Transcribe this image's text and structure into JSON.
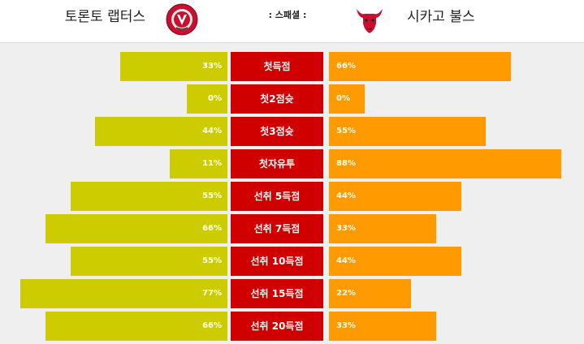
{
  "header": {
    "home_team": "토론토 랩터스",
    "away_team": "시카고 불스",
    "title": ": 스패셜 :",
    "home_logo_icon": "raptors-logo-icon",
    "away_logo_icon": "bulls-logo-icon"
  },
  "colors": {
    "home_bar": "#cccc00",
    "away_bar": "#ff9a00",
    "label_bg": "#d10000"
  },
  "stats": [
    {
      "label": "첫득점",
      "home_pct": "33%",
      "away_pct": "66%",
      "home_value": 33,
      "away_value": 66
    },
    {
      "label": "첫2점슛",
      "home_pct": "0%",
      "away_pct": "0%",
      "home_value": 0,
      "away_value": 0
    },
    {
      "label": "첫3점슛",
      "home_pct": "44%",
      "away_pct": "55%",
      "home_value": 44,
      "away_value": 55
    },
    {
      "label": "첫자유투",
      "home_pct": "11%",
      "away_pct": "88%",
      "home_value": 11,
      "away_value": 88
    },
    {
      "label": "선취 5득점",
      "home_pct": "55%",
      "away_pct": "44%",
      "home_value": 55,
      "away_value": 44
    },
    {
      "label": "선취 7득점",
      "home_pct": "66%",
      "away_pct": "33%",
      "home_value": 66,
      "away_value": 33
    },
    {
      "label": "선취 10득점",
      "home_pct": "55%",
      "away_pct": "44%",
      "home_value": 55,
      "away_value": 44
    },
    {
      "label": "선취 15득점",
      "home_pct": "77%",
      "away_pct": "22%",
      "home_value": 77,
      "away_value": 22
    },
    {
      "label": "선취 20득점",
      "home_pct": "66%",
      "away_pct": "33%",
      "home_value": 66,
      "away_value": 33
    }
  ]
}
